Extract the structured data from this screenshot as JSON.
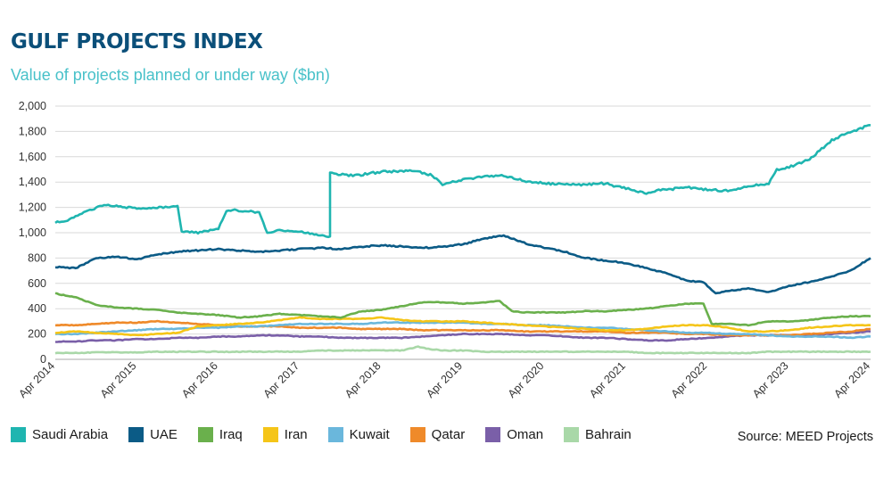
{
  "title": "GULF PROJECTS INDEX",
  "subtitle": "Value of projects planned or under way ($bn)",
  "source": "Source: MEED Projects",
  "chart_data": {
    "type": "line",
    "title": "GULF PROJECTS INDEX",
    "subtitle": "Value of projects planned or under way ($bn)",
    "xlabel": "",
    "ylabel": "",
    "ylim": [
      0,
      2000
    ],
    "yticks": [
      "0",
      "200",
      "400",
      "600",
      "800",
      "1,000",
      "1,200",
      "1,400",
      "1,600",
      "1,800",
      "2,000"
    ],
    "xlim": [
      2014.25,
      2024.25
    ],
    "xticks": [
      "Apr 2014",
      "Apr 2015",
      "Apr 2016",
      "Apr 2017",
      "Apr 2018",
      "Apr 2019",
      "Apr 2020",
      "Apr 2021",
      "Apr 2022",
      "Apr 2023",
      "Apr 2024"
    ],
    "grid": "horizontal",
    "legend_position": "bottom",
    "series": [
      {
        "name": "Saudi Arabia",
        "color": "#1fb5b0",
        "x": [
          2014.25,
          2014.4,
          2014.6,
          2014.85,
          2015.0,
          2015.25,
          2015.5,
          2015.75,
          2015.8,
          2016.0,
          2016.25,
          2016.35,
          2016.45,
          2016.75,
          2016.85,
          2017.0,
          2017.25,
          2017.5,
          2017.6,
          2017.62,
          2017.9,
          2018.25,
          2018.6,
          2018.85,
          2019.0,
          2019.25,
          2019.5,
          2019.75,
          2020.0,
          2020.25,
          2020.5,
          2020.75,
          2021.0,
          2021.1,
          2021.25,
          2021.5,
          2021.6,
          2021.75,
          2022.0,
          2022.25,
          2022.5,
          2022.75,
          2023.0,
          2023.1,
          2023.25,
          2023.5,
          2023.75,
          2024.0,
          2024.25
        ],
        "y": [
          1080,
          1100,
          1160,
          1220,
          1210,
          1190,
          1200,
          1210,
          1010,
          1000,
          1030,
          1170,
          1180,
          1160,
          1000,
          1020,
          1010,
          980,
          970,
          1470,
          1450,
          1480,
          1490,
          1460,
          1380,
          1420,
          1440,
          1450,
          1410,
          1390,
          1380,
          1380,
          1390,
          1370,
          1350,
          1310,
          1330,
          1340,
          1360,
          1340,
          1330,
          1370,
          1390,
          1500,
          1520,
          1580,
          1720,
          1800,
          1850
        ]
      },
      {
        "name": "UAE",
        "color": "#0b5b86",
        "x": [
          2014.25,
          2014.5,
          2014.75,
          2015.0,
          2015.25,
          2015.5,
          2015.75,
          2016.0,
          2016.25,
          2016.5,
          2016.75,
          2017.0,
          2017.25,
          2017.5,
          2017.75,
          2018.0,
          2018.25,
          2018.5,
          2018.75,
          2019.0,
          2019.25,
          2019.5,
          2019.75,
          2020.0,
          2020.25,
          2020.5,
          2020.75,
          2021.0,
          2021.25,
          2021.5,
          2021.75,
          2022.0,
          2022.2,
          2022.35,
          2022.5,
          2022.75,
          2023.0,
          2023.25,
          2023.5,
          2023.75,
          2024.0,
          2024.25
        ],
        "y": [
          730,
          720,
          800,
          810,
          790,
          830,
          850,
          860,
          870,
          860,
          850,
          860,
          870,
          880,
          870,
          890,
          900,
          890,
          880,
          890,
          910,
          950,
          980,
          920,
          880,
          850,
          800,
          780,
          760,
          720,
          680,
          620,
          610,
          520,
          540,
          560,
          530,
          580,
          610,
          650,
          700,
          800
        ]
      },
      {
        "name": "Iraq",
        "color": "#6ab04c",
        "x": [
          2014.25,
          2014.5,
          2014.75,
          2015.0,
          2015.25,
          2015.5,
          2015.75,
          2016.0,
          2016.25,
          2016.5,
          2016.75,
          2017.0,
          2017.25,
          2017.5,
          2017.75,
          2018.0,
          2018.25,
          2018.5,
          2018.75,
          2019.0,
          2019.25,
          2019.5,
          2019.7,
          2019.85,
          2020.0,
          2020.25,
          2020.5,
          2020.75,
          2021.0,
          2021.25,
          2021.5,
          2021.75,
          2022.0,
          2022.2,
          2022.3,
          2022.5,
          2022.75,
          2023.0,
          2023.25,
          2023.5,
          2023.75,
          2024.0,
          2024.25
        ],
        "y": [
          520,
          490,
          430,
          410,
          400,
          390,
          370,
          360,
          350,
          330,
          340,
          360,
          350,
          340,
          330,
          380,
          390,
          420,
          450,
          450,
          440,
          450,
          460,
          380,
          370,
          370,
          370,
          380,
          380,
          390,
          400,
          420,
          440,
          440,
          280,
          280,
          270,
          300,
          300,
          310,
          330,
          340,
          340
        ]
      },
      {
        "name": "Iran",
        "color": "#f5c518",
        "x": [
          2014.25,
          2014.5,
          2014.75,
          2015.0,
          2015.25,
          2015.5,
          2015.75,
          2016.0,
          2016.25,
          2016.5,
          2016.75,
          2017.0,
          2017.25,
          2017.5,
          2017.75,
          2018.0,
          2018.25,
          2018.5,
          2018.75,
          2019.0,
          2019.25,
          2019.5,
          2019.75,
          2020.0,
          2020.25,
          2020.5,
          2020.75,
          2021.0,
          2021.25,
          2021.5,
          2021.75,
          2022.0,
          2022.25,
          2022.5,
          2022.75,
          2023.0,
          2023.25,
          2023.5,
          2023.75,
          2024.0,
          2024.25
        ],
        "y": [
          210,
          220,
          210,
          200,
          190,
          200,
          210,
          260,
          270,
          280,
          290,
          310,
          330,
          320,
          320,
          320,
          330,
          310,
          300,
          300,
          300,
          290,
          280,
          270,
          260,
          250,
          240,
          230,
          230,
          240,
          260,
          270,
          270,
          250,
          220,
          220,
          230,
          250,
          260,
          270,
          270
        ]
      },
      {
        "name": "Kuwait",
        "color": "#6ab7dc",
        "x": [
          2014.25,
          2014.5,
          2014.75,
          2015.0,
          2015.25,
          2015.5,
          2015.75,
          2016.0,
          2016.25,
          2016.5,
          2016.75,
          2017.0,
          2017.25,
          2017.5,
          2017.75,
          2018.0,
          2018.25,
          2018.5,
          2018.75,
          2019.0,
          2019.25,
          2019.5,
          2019.75,
          2020.0,
          2020.25,
          2020.5,
          2020.75,
          2021.0,
          2021.25,
          2021.5,
          2021.75,
          2022.0,
          2022.25,
          2022.5,
          2022.75,
          2023.0,
          2023.25,
          2023.5,
          2023.75,
          2024.0,
          2024.25
        ],
        "y": [
          200,
          200,
          210,
          220,
          230,
          240,
          240,
          250,
          250,
          260,
          260,
          270,
          280,
          280,
          280,
          280,
          290,
          290,
          290,
          290,
          290,
          280,
          280,
          270,
          270,
          260,
          250,
          250,
          240,
          230,
          220,
          210,
          210,
          200,
          200,
          190,
          180,
          180,
          180,
          170,
          180
        ]
      },
      {
        "name": "Qatar",
        "color": "#ef8a2a",
        "x": [
          2014.25,
          2014.5,
          2014.75,
          2015.0,
          2015.25,
          2015.5,
          2015.75,
          2016.0,
          2016.25,
          2016.5,
          2016.75,
          2017.0,
          2017.25,
          2017.5,
          2017.75,
          2018.0,
          2018.25,
          2018.5,
          2018.75,
          2019.0,
          2019.25,
          2019.5,
          2019.75,
          2020.0,
          2020.25,
          2020.5,
          2020.75,
          2021.0,
          2021.25,
          2021.5,
          2021.75,
          2022.0,
          2022.25,
          2022.5,
          2022.75,
          2023.0,
          2023.25,
          2023.5,
          2023.75,
          2024.0,
          2024.25
        ],
        "y": [
          270,
          270,
          280,
          290,
          290,
          300,
          290,
          280,
          270,
          260,
          260,
          260,
          250,
          250,
          250,
          240,
          240,
          240,
          230,
          230,
          230,
          230,
          230,
          220,
          220,
          220,
          220,
          220,
          210,
          210,
          210,
          200,
          200,
          190,
          190,
          190,
          190,
          200,
          210,
          220,
          240
        ]
      },
      {
        "name": "Oman",
        "color": "#7a5fa8",
        "x": [
          2014.25,
          2014.5,
          2014.75,
          2015.0,
          2015.25,
          2015.5,
          2015.75,
          2016.0,
          2016.25,
          2016.5,
          2016.75,
          2017.0,
          2017.25,
          2017.5,
          2017.75,
          2018.0,
          2018.25,
          2018.5,
          2018.75,
          2019.0,
          2019.25,
          2019.5,
          2019.75,
          2020.0,
          2020.25,
          2020.5,
          2020.75,
          2021.0,
          2021.25,
          2021.5,
          2021.75,
          2022.0,
          2022.25,
          2022.5,
          2022.75,
          2023.0,
          2023.25,
          2023.5,
          2023.75,
          2024.0,
          2024.25
        ],
        "y": [
          140,
          140,
          150,
          150,
          160,
          160,
          170,
          170,
          180,
          180,
          190,
          190,
          180,
          180,
          170,
          170,
          170,
          170,
          180,
          190,
          200,
          200,
          200,
          190,
          190,
          180,
          170,
          170,
          160,
          150,
          150,
          160,
          170,
          180,
          190,
          190,
          190,
          190,
          200,
          210,
          220
        ]
      },
      {
        "name": "Bahrain",
        "color": "#a9d8a8",
        "x": [
          2014.25,
          2014.5,
          2014.75,
          2015.0,
          2015.25,
          2015.5,
          2015.75,
          2016.0,
          2016.25,
          2016.5,
          2016.75,
          2017.0,
          2017.25,
          2017.5,
          2017.75,
          2018.0,
          2018.25,
          2018.5,
          2018.7,
          2018.85,
          2019.0,
          2019.25,
          2019.5,
          2019.75,
          2020.0,
          2020.25,
          2020.5,
          2020.75,
          2021.0,
          2021.25,
          2021.5,
          2021.75,
          2022.0,
          2022.25,
          2022.5,
          2022.75,
          2023.0,
          2023.25,
          2023.5,
          2023.75,
          2024.0,
          2024.25
        ],
        "y": [
          50,
          50,
          55,
          55,
          55,
          60,
          60,
          60,
          60,
          60,
          60,
          60,
          60,
          70,
          70,
          70,
          70,
          70,
          100,
          80,
          70,
          70,
          60,
          60,
          60,
          60,
          60,
          60,
          60,
          60,
          50,
          50,
          50,
          50,
          50,
          50,
          60,
          60,
          60,
          60,
          60,
          60
        ]
      }
    ]
  }
}
